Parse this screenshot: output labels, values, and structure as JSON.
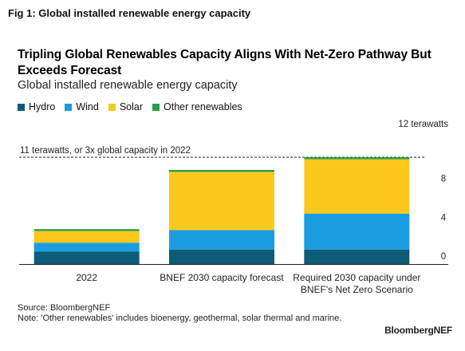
{
  "figure_label": "Fig 1: Global installed renewable energy capacity",
  "source": "Source: BloombergNEF",
  "note": "Note: 'Other renewables' includes bioenergy, geothermal, solar thermal and marine.",
  "brand": "BloombergNEF",
  "colors": {
    "hydro": "#0d5c78",
    "wind": "#1a9de0",
    "solar": "#fbc81b",
    "other": "#2a9d48"
  },
  "chart_data": {
    "type": "bar",
    "stacked": true,
    "title": "Tripling Global Renewables Capacity Aligns With Net-Zero Pathway But Exceeds Forecast",
    "subtitle": "Global installed renewable energy capacity",
    "categories": [
      "2022",
      "BNEF 2030 capacity forecast",
      "Required 2030 capacity under BNEF's Net Zero Scenario"
    ],
    "category_lines": [
      [
        "2022"
      ],
      [
        "BNEF 2030 capacity forecast"
      ],
      [
        "Required 2030 capacity under",
        "BNEF's Net Zero Scenario"
      ]
    ],
    "series": [
      {
        "name": "Hydro",
        "color": "#0d5c78",
        "values": [
          1.3,
          1.5,
          1.5
        ]
      },
      {
        "name": "Wind",
        "color": "#1a9de0",
        "values": [
          0.9,
          2.0,
          3.7
        ]
      },
      {
        "name": "Solar",
        "color": "#fbc81b",
        "values": [
          1.2,
          6.0,
          5.6
        ]
      },
      {
        "name": "Other renewables",
        "color": "#2a9d48",
        "values": [
          0.2,
          0.2,
          0.2
        ]
      }
    ],
    "ylim": [
      0,
      12
    ],
    "yticks": [
      0,
      4,
      8,
      12
    ],
    "ytick_labels": [
      "0",
      "4",
      "8",
      "12 terawatts"
    ],
    "y_axis_side": "right",
    "reference_line": {
      "value": 11,
      "label": "11 terawatts, or 3x global capacity in 2022",
      "style": "dashed"
    },
    "grid": false,
    "legend_position": "top-left"
  }
}
